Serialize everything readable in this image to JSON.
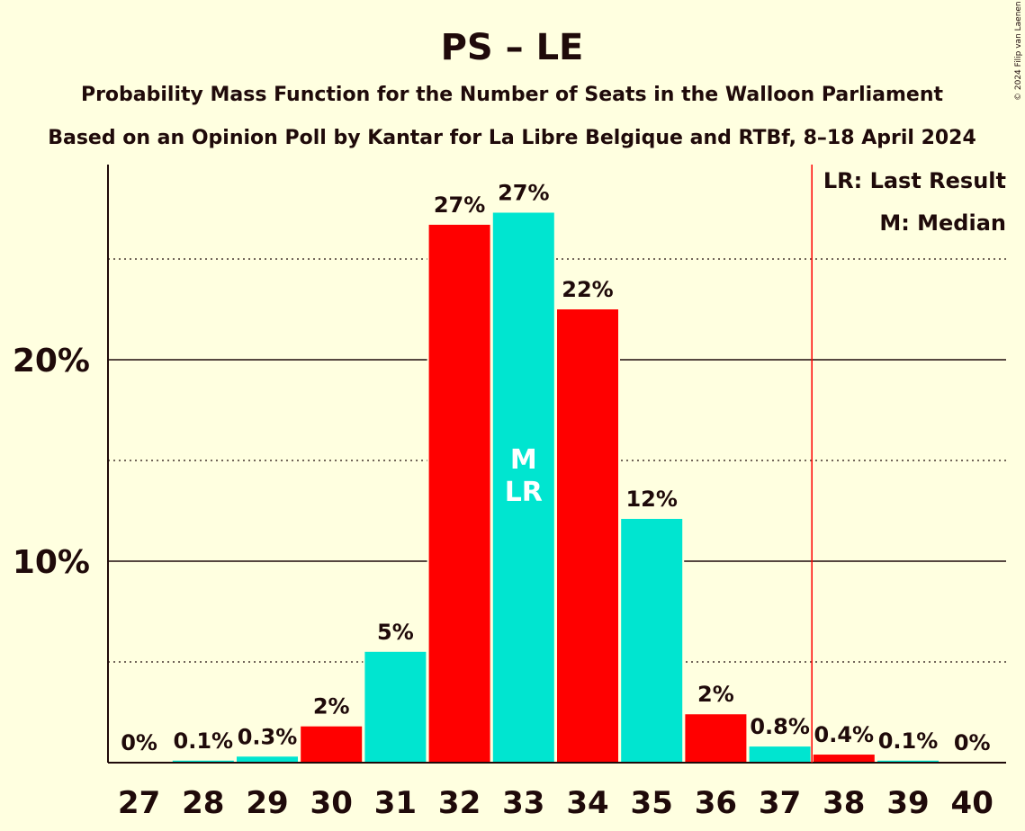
{
  "chart_data": {
    "type": "bar",
    "title": "PS – LE",
    "subtitle": "Probability Mass Function for the Number of Seats in the Walloon Parliament",
    "subtitle2": "Based on an Opinion Poll by Kantar for La Libre Belgique and RTBf, 8–18 April 2024",
    "copyright": "© 2024 Filip van Laenen",
    "categories": [
      "27",
      "28",
      "29",
      "30",
      "31",
      "32",
      "33",
      "34",
      "35",
      "36",
      "37",
      "38",
      "39",
      "40"
    ],
    "values": [
      0,
      0.1,
      0.3,
      1.8,
      5.5,
      26.7,
      27.3,
      22.5,
      12.1,
      2.4,
      0.8,
      0.4,
      0.1,
      0
    ],
    "labels": [
      "0%",
      "0.1%",
      "0.3%",
      "2%",
      "5%",
      "27%",
      "27%",
      "22%",
      "12%",
      "2%",
      "0.8%",
      "0.4%",
      "0.1%",
      "0%"
    ],
    "ylim": [
      0,
      30
    ],
    "yticks": [
      10,
      20
    ],
    "ytick_labels": [
      "10%",
      "20%"
    ],
    "colors": [
      "#FF0000",
      "#00E5D0",
      "#00E5D0",
      "#FF0000",
      "#00E5D0",
      "#FF0000",
      "#00E5D0",
      "#FF0000",
      "#00E5D0",
      "#FF0000",
      "#00E5D0",
      "#FF0000",
      "#00E5D0",
      "#FF0000"
    ],
    "last_result": "33",
    "median": "33",
    "markers": {
      "median": "M",
      "last_result": "LR"
    },
    "legend": [
      "LR: Last Result",
      "M: Median"
    ],
    "legend_position": "top-right",
    "threshold_seat": 38
  }
}
